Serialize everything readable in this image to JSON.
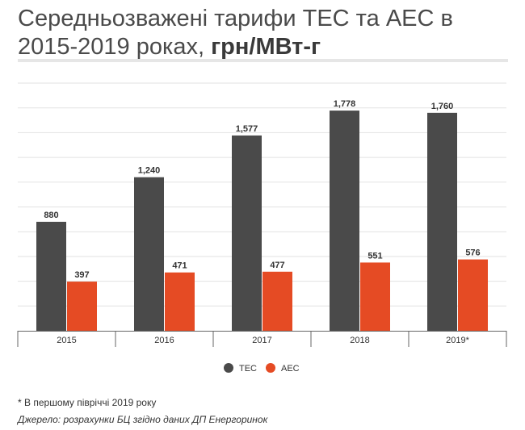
{
  "title": {
    "main": "Середньозважені тарифи ТЕС та АЕС в 2015-2019 роках,",
    "unit": "грн/МВт-г"
  },
  "chart_data": {
    "type": "bar",
    "categories": [
      "2015",
      "2016",
      "2017",
      "2018",
      "2019*"
    ],
    "series": [
      {
        "name": "ТЕС",
        "values": [
          880,
          1240,
          1577,
          1778,
          1760
        ],
        "labels": [
          "880",
          "1,240",
          "1,577",
          "1,778",
          "1,760"
        ],
        "color": "#4a4a4a"
      },
      {
        "name": "АЕС",
        "values": [
          397,
          471,
          477,
          551,
          576
        ],
        "labels": [
          "397",
          "471",
          "477",
          "551",
          "576"
        ],
        "color": "#e54b24"
      }
    ],
    "ylim": [
      0,
      2000
    ],
    "grid": true,
    "legend": "bottom-center"
  },
  "footnote": "* В першому півріччі 2019 року",
  "source": "Джерело: розрахунки БЦ згідно даних ДП Енергоринок"
}
